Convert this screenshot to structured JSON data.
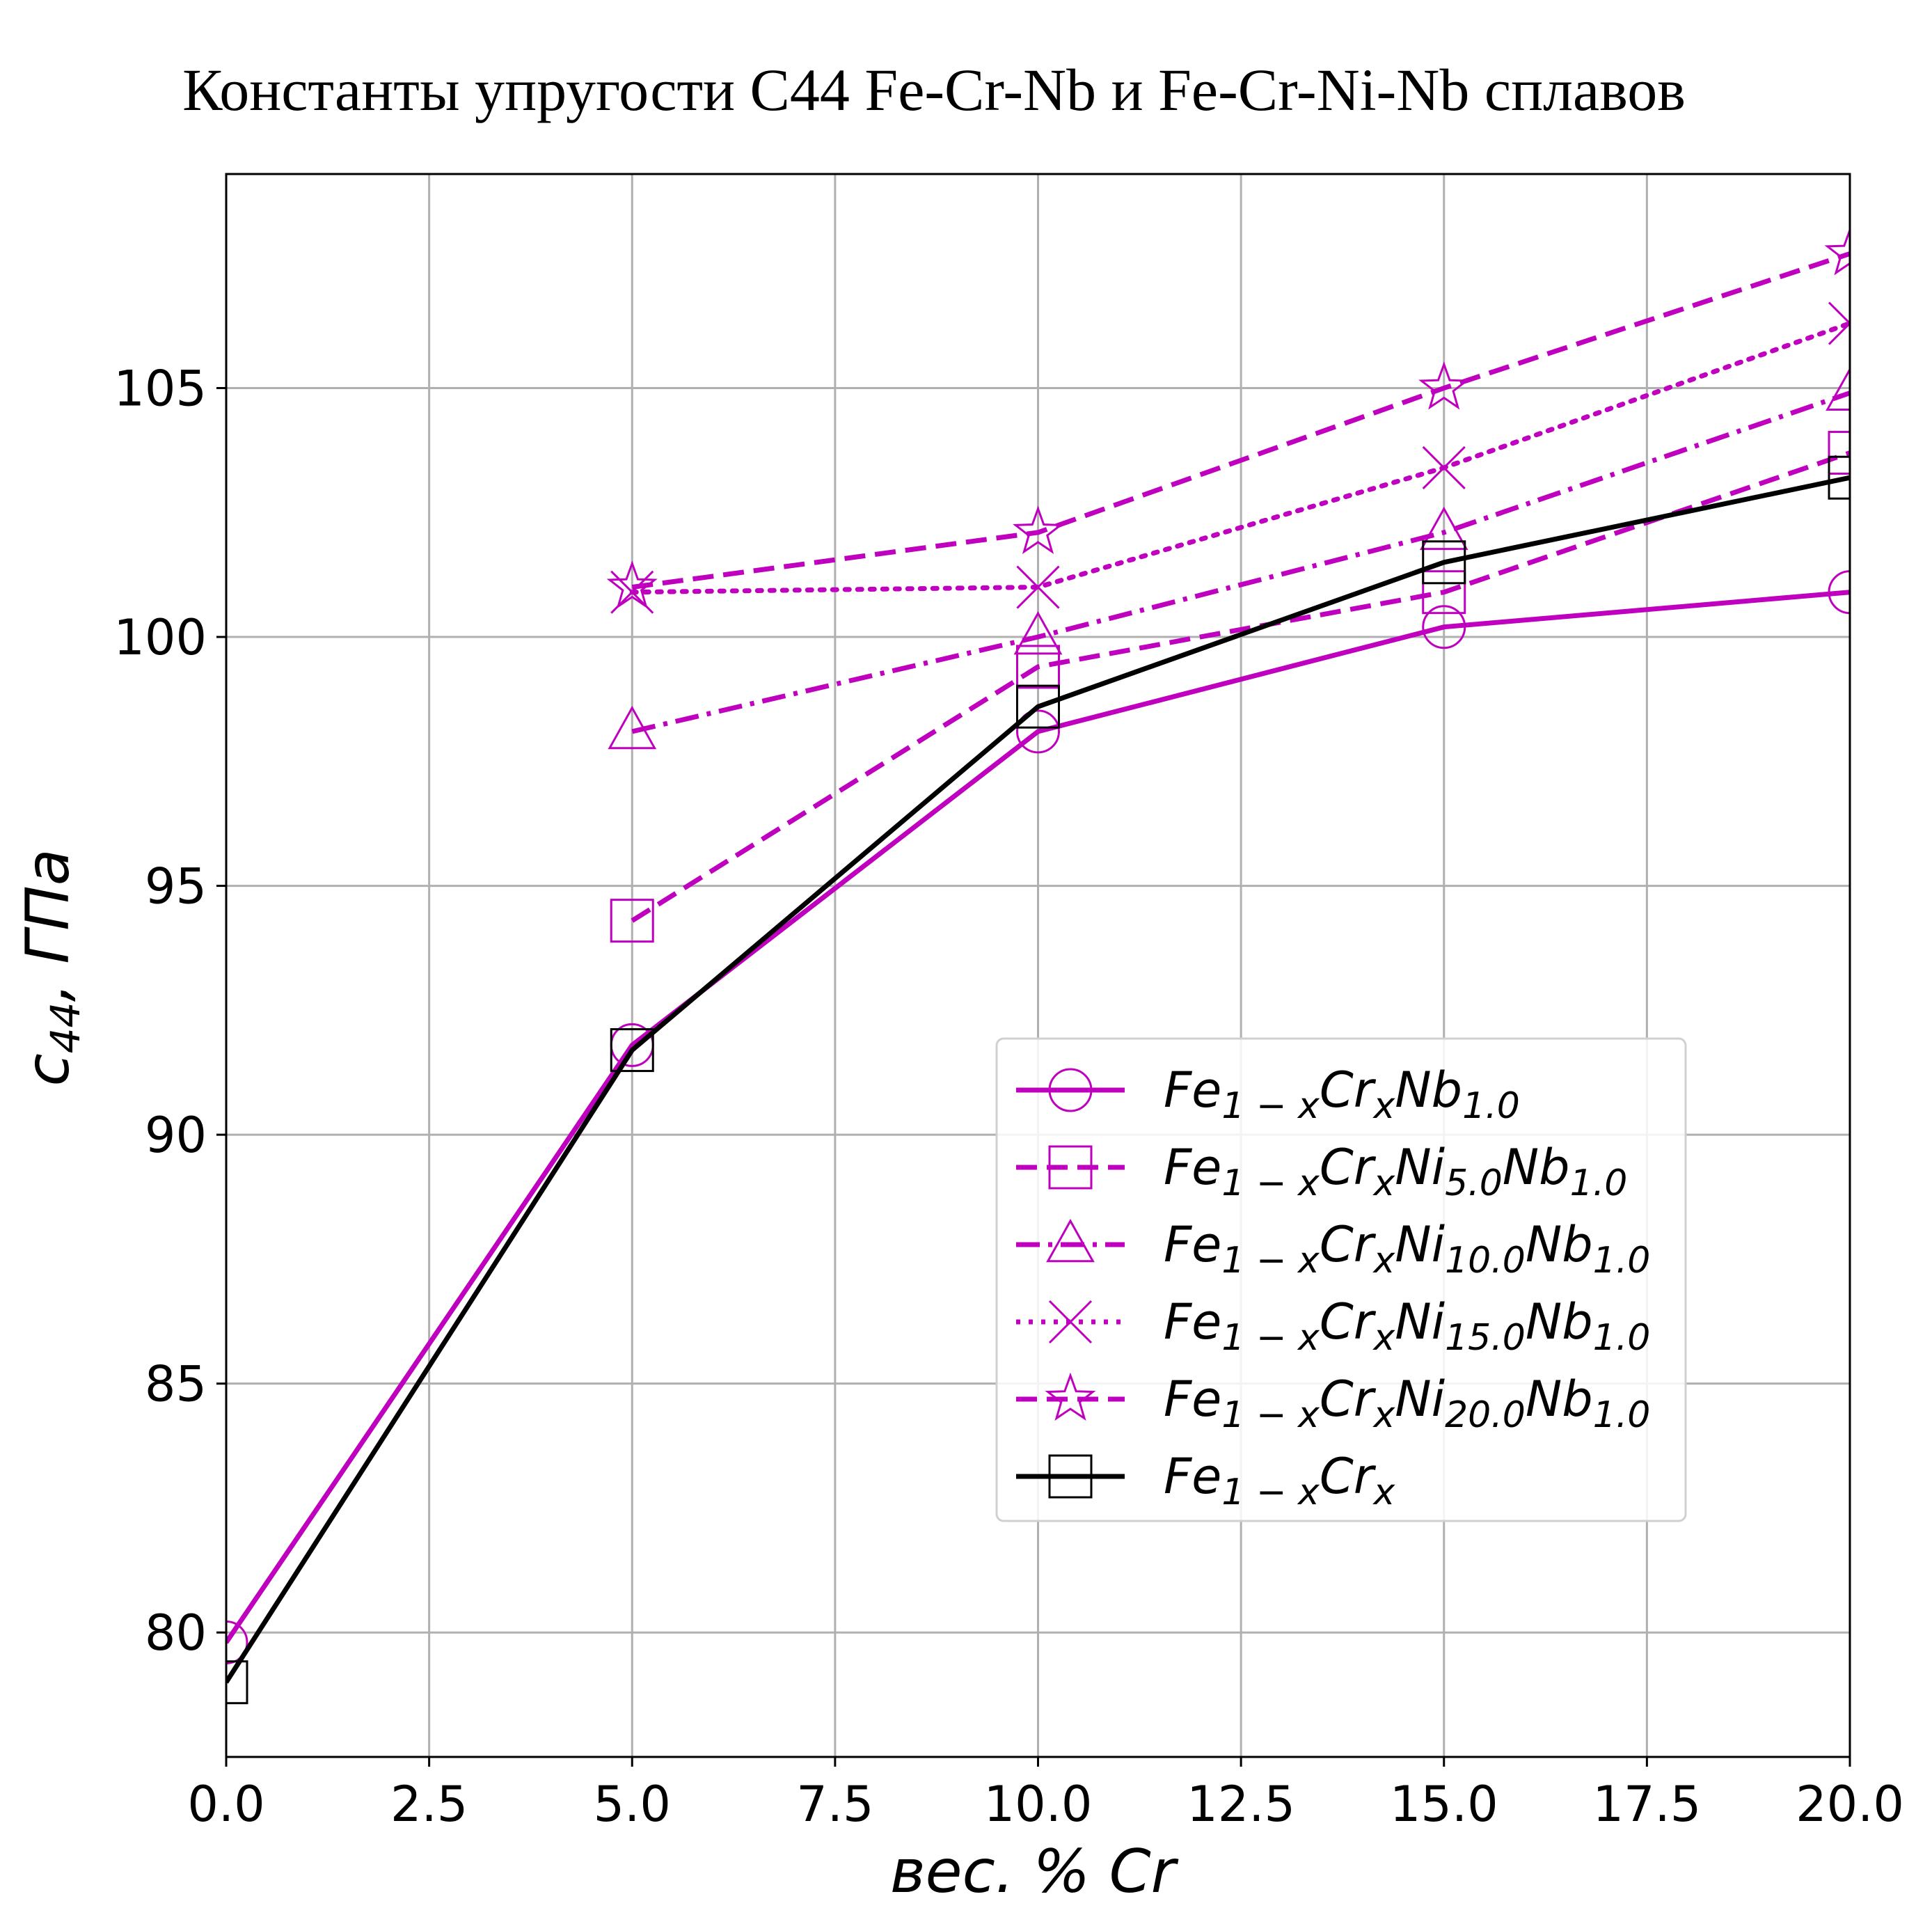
{
  "chart_data": {
    "type": "line",
    "title": "Константы упругости C44 Fe-Cr-Nb и Fe-Cr-Ni-Nb сплавов",
    "xlabel": "вес.  % Cr",
    "ylabel": "c44,  ГПа",
    "xlim": [
      0,
      20
    ],
    "ylim": [
      77.5,
      109.3
    ],
    "x_ticks": [
      "0.0",
      "2.5",
      "5.0",
      "7.5",
      "10.0",
      "12.5",
      "15.0",
      "17.5",
      "20.0"
    ],
    "y_ticks": [
      "80",
      "85",
      "90",
      "95",
      "100",
      "105"
    ],
    "grid": true,
    "legend_position": "center-right",
    "series": [
      {
        "name": "Fe1−xCrxNb1.0",
        "color": "#bf00bf",
        "dash": "solid",
        "marker": "circle",
        "x": [
          0,
          5,
          10,
          15,
          20
        ],
        "y": [
          79.8,
          91.8,
          98.1,
          100.2,
          100.9
        ]
      },
      {
        "name": "Fe1−xCrxNi5.0Nb1.0",
        "color": "#bf00bf",
        "dash": "dashed",
        "marker": "square",
        "x": [
          5,
          10,
          15,
          20
        ],
        "y": [
          94.3,
          99.4,
          100.9,
          103.7
        ]
      },
      {
        "name": "Fe1−xCrxNi10.0Nb1.0",
        "color": "#bf00bf",
        "dash": "dashdot",
        "marker": "triangle",
        "x": [
          5,
          10,
          15,
          20
        ],
        "y": [
          98.1,
          100.0,
          102.1,
          104.9
        ]
      },
      {
        "name": "Fe1−xCrxNi15.0Nb1.0",
        "color": "#bf00bf",
        "dash": "dotted",
        "marker": "x",
        "x": [
          5,
          10,
          15,
          20
        ],
        "y": [
          100.9,
          101.0,
          103.4,
          106.3
        ]
      },
      {
        "name": "Fe1−xCrxNi20.0Nb1.0",
        "color": "#bf00bf",
        "dash": "dashed",
        "marker": "star",
        "x": [
          5,
          10,
          15,
          20
        ],
        "y": [
          101.0,
          102.1,
          105.0,
          107.7
        ]
      },
      {
        "name": "Fe1−xCrx",
        "color": "#000000",
        "dash": "solid",
        "marker": "square",
        "x": [
          0,
          5,
          10,
          15,
          20
        ],
        "y": [
          79.0,
          91.7,
          98.6,
          101.5,
          103.2
        ]
      }
    ],
    "legend_entries": [
      {
        "base": "Fe",
        "s1": "1 − x",
        "el2": "Cr",
        "s2": "x",
        "el3": "Nb",
        "s3": "1.0",
        "el4": "",
        "s4": ""
      },
      {
        "base": "Fe",
        "s1": "1 − x",
        "el2": "Cr",
        "s2": "x",
        "el3": "Ni",
        "s3": "5.0",
        "el4": "Nb",
        "s4": "1.0"
      },
      {
        "base": "Fe",
        "s1": "1 − x",
        "el2": "Cr",
        "s2": "x",
        "el3": "Ni",
        "s3": "10.0",
        "el4": "Nb",
        "s4": "1.0"
      },
      {
        "base": "Fe",
        "s1": "1 − x",
        "el2": "Cr",
        "s2": "x",
        "el3": "Ni",
        "s3": "15.0",
        "el4": "Nb",
        "s4": "1.0"
      },
      {
        "base": "Fe",
        "s1": "1 − x",
        "el2": "Cr",
        "s2": "x",
        "el3": "Ni",
        "s3": "20.0",
        "el4": "Nb",
        "s4": "1.0"
      },
      {
        "base": "Fe",
        "s1": "1 − x",
        "el2": "Cr",
        "s2": "x",
        "el3": "",
        "s3": "",
        "el4": "",
        "s4": ""
      }
    ]
  }
}
